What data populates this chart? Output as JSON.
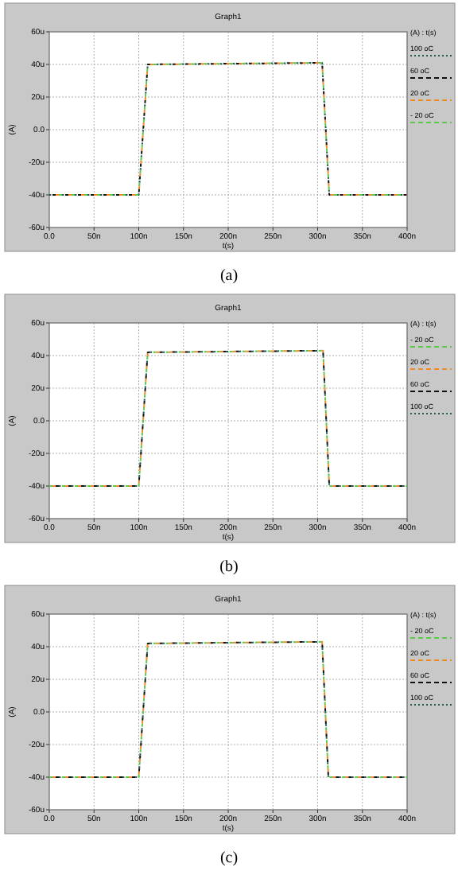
{
  "chart_data": [
    {
      "type": "line",
      "title": "Graph1",
      "xlabel": "t(s)",
      "ylabel": "(A)",
      "legend_title": "(A) : t(s)",
      "legend": "right",
      "grid": true,
      "annotations": [
        "(a)"
      ],
      "xlim": [
        0,
        400
      ],
      "xticks": [
        {
          "value": 0,
          "label": "0.0"
        },
        {
          "value": 50,
          "label": "50n"
        },
        {
          "value": 100,
          "label": "100n"
        },
        {
          "value": 150,
          "label": "150n"
        },
        {
          "value": 200,
          "label": "200n"
        },
        {
          "value": 250,
          "label": "250n"
        },
        {
          "value": 300,
          "label": "300n"
        },
        {
          "value": 350,
          "label": "350n"
        },
        {
          "value": 400,
          "label": "400n"
        }
      ],
      "ylim": [
        -60,
        60
      ],
      "yticks": [
        {
          "value": -60,
          "label": "-60u"
        },
        {
          "value": -40,
          "label": "-40u"
        },
        {
          "value": -20,
          "label": "-20u"
        },
        {
          "value": 0,
          "label": "0.0"
        },
        {
          "value": 20,
          "label": "20u"
        },
        {
          "value": 40,
          "label": "40u"
        },
        {
          "value": 60,
          "label": "60u"
        }
      ],
      "x": [
        0,
        100,
        110,
        305,
        313,
        400
      ],
      "series": [
        {
          "name": "100 oC",
          "color": "#1f5f4f",
          "line_style": "dotted",
          "values": [
            -40,
            -40,
            40,
            41,
            -40,
            -40
          ]
        },
        {
          "name": "60 oC",
          "color": "#111111",
          "line_style": "dashed",
          "values": [
            -40,
            -40,
            40,
            41,
            -40,
            -40
          ]
        },
        {
          "name": "20 oC",
          "color": "#f08a24",
          "line_style": "dashed",
          "values": [
            -40,
            -40,
            40,
            41,
            -40,
            -40
          ]
        },
        {
          "name": "- 20 oC",
          "color": "#5cc84a",
          "line_style": "dashed",
          "values": [
            -40,
            -40,
            40,
            41,
            -40,
            -40
          ]
        }
      ]
    },
    {
      "type": "line",
      "title": "Graph1",
      "xlabel": "t(s)",
      "ylabel": "(A)",
      "legend_title": "(A) : t(s)",
      "legend": "right",
      "grid": true,
      "annotations": [
        "(b)"
      ],
      "xlim": [
        0,
        400
      ],
      "xticks": [
        {
          "value": 0,
          "label": "0.0"
        },
        {
          "value": 50,
          "label": "50n"
        },
        {
          "value": 100,
          "label": "100n"
        },
        {
          "value": 150,
          "label": "150n"
        },
        {
          "value": 200,
          "label": "200n"
        },
        {
          "value": 250,
          "label": "250n"
        },
        {
          "value": 300,
          "label": "300n"
        },
        {
          "value": 350,
          "label": "350n"
        },
        {
          "value": 400,
          "label": "400n"
        }
      ],
      "ylim": [
        -60,
        60
      ],
      "yticks": [
        {
          "value": -60,
          "label": "-60u"
        },
        {
          "value": -40,
          "label": "-40u"
        },
        {
          "value": -20,
          "label": "-20u"
        },
        {
          "value": 0,
          "label": "0.0"
        },
        {
          "value": 20,
          "label": "20u"
        },
        {
          "value": 40,
          "label": "40u"
        },
        {
          "value": 60,
          "label": "60u"
        }
      ],
      "x": [
        0,
        100,
        110,
        306,
        313,
        400
      ],
      "series": [
        {
          "name": "- 20 oC",
          "color": "#5cc84a",
          "line_style": "dashed",
          "values": [
            -40,
            -40,
            42,
            43,
            -40,
            -40
          ]
        },
        {
          "name": "20 oC",
          "color": "#f08a24",
          "line_style": "dashed",
          "values": [
            -40,
            -40,
            42,
            43,
            -40,
            -40
          ]
        },
        {
          "name": "60 oC",
          "color": "#111111",
          "line_style": "dashed",
          "values": [
            -40,
            -40,
            42,
            43,
            -40,
            -40
          ]
        },
        {
          "name": "100 oC",
          "color": "#1f5f4f",
          "line_style": "dotted",
          "values": [
            -40,
            -40,
            42,
            43,
            -40,
            -40
          ]
        }
      ]
    },
    {
      "type": "line",
      "title": "Graph1",
      "xlabel": "t(s)",
      "ylabel": "(A)",
      "legend_title": "(A) : t(s)",
      "legend": "right",
      "grid": true,
      "annotations": [
        "(c)"
      ],
      "xlim": [
        0,
        400
      ],
      "xticks": [
        {
          "value": 0,
          "label": "0.0"
        },
        {
          "value": 50,
          "label": "50n"
        },
        {
          "value": 100,
          "label": "100n"
        },
        {
          "value": 150,
          "label": "150n"
        },
        {
          "value": 200,
          "label": "200n"
        },
        {
          "value": 250,
          "label": "250n"
        },
        {
          "value": 300,
          "label": "300n"
        },
        {
          "value": 350,
          "label": "350n"
        },
        {
          "value": 400,
          "label": "400n"
        }
      ],
      "ylim": [
        -60,
        60
      ],
      "yticks": [
        {
          "value": -60,
          "label": "-60u"
        },
        {
          "value": -40,
          "label": "-40u"
        },
        {
          "value": -20,
          "label": "-20u"
        },
        {
          "value": 0,
          "label": "0.0"
        },
        {
          "value": 20,
          "label": "20u"
        },
        {
          "value": 40,
          "label": "40u"
        },
        {
          "value": 60,
          "label": "60u"
        }
      ],
      "x": [
        0,
        100,
        110,
        305,
        312,
        400
      ],
      "series": [
        {
          "name": "- 20 oC",
          "color": "#5cc84a",
          "line_style": "dashed",
          "values": [
            -40,
            -40,
            42,
            43,
            -40,
            -40
          ]
        },
        {
          "name": "20 oC",
          "color": "#f08a24",
          "line_style": "dashed",
          "values": [
            -40,
            -40,
            42,
            43,
            -40,
            -40
          ]
        },
        {
          "name": "60 oC",
          "color": "#111111",
          "line_style": "dashed",
          "values": [
            -40,
            -40,
            42,
            43,
            -40,
            -40
          ]
        },
        {
          "name": "100 oC",
          "color": "#1f5f4f",
          "line_style": "dotted",
          "values": [
            -40,
            -40,
            42,
            43,
            -40,
            -40
          ]
        }
      ]
    }
  ]
}
